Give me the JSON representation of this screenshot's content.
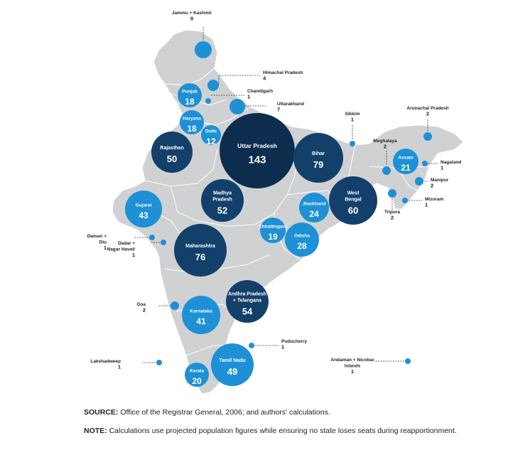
{
  "map": {
    "colors": {
      "land": "#cfd1d3",
      "border": "#ffffff",
      "large": "#0c2d4d",
      "dark": "#13406a",
      "mid": "#1f78bf",
      "light": "#1e90d6",
      "leader": "#333333"
    },
    "states": [
      {
        "id": "uttar-pradesh",
        "name": "Uttar Pradesh",
        "value": "143",
        "seats": 143,
        "tier": "large",
        "labelInside": true
      },
      {
        "id": "bihar",
        "name": "Bihar",
        "value": "79",
        "seats": 79,
        "tier": "dark",
        "labelInside": true
      },
      {
        "id": "maharashtra",
        "name": "Maharashtra",
        "value": "76",
        "seats": 76,
        "tier": "dark",
        "labelInside": true
      },
      {
        "id": "west-bengal",
        "name": "West Bengal",
        "value": "60",
        "seats": 60,
        "tier": "dark",
        "labelInside": true
      },
      {
        "id": "andhra-pradesh-telangana",
        "name": "Andhra Pradesh + Telangana",
        "value": "54",
        "seats": 54,
        "tier": "dark",
        "labelInside": true
      },
      {
        "id": "madhya-pradesh",
        "name": "Madhya Pradesh",
        "value": "52",
        "seats": 52,
        "tier": "dark",
        "labelInside": true
      },
      {
        "id": "rajasthan",
        "name": "Rajasthan",
        "value": "50",
        "seats": 50,
        "tier": "dark",
        "labelInside": true
      },
      {
        "id": "tamil-nadu",
        "name": "Tamil Nadu",
        "value": "49",
        "seats": 49,
        "tier": "light",
        "labelInside": true
      },
      {
        "id": "gujarat",
        "name": "Gujarat",
        "value": "43",
        "seats": 43,
        "tier": "light",
        "labelInside": true
      },
      {
        "id": "karnataka",
        "name": "Karnataka",
        "value": "41",
        "seats": 41,
        "tier": "light",
        "labelInside": true
      },
      {
        "id": "odisha",
        "name": "Odisha",
        "value": "28",
        "seats": 28,
        "tier": "light",
        "labelInside": true
      },
      {
        "id": "jharkhand",
        "name": "Jharkhand",
        "value": "24",
        "seats": 24,
        "tier": "light",
        "labelInside": true
      },
      {
        "id": "assam",
        "name": "Assam",
        "value": "21",
        "seats": 21,
        "tier": "light",
        "labelInside": true
      },
      {
        "id": "kerala",
        "name": "Kerala",
        "value": "20",
        "seats": 20,
        "tier": "light",
        "labelInside": true
      },
      {
        "id": "chhattisgarh",
        "name": "Chhattisgarh",
        "value": "19",
        "seats": 19,
        "tier": "light",
        "labelInside": true
      },
      {
        "id": "punjab",
        "name": "Punjab",
        "value": "18",
        "seats": 18,
        "tier": "light",
        "labelInside": true
      },
      {
        "id": "haryana",
        "name": "Haryana",
        "value": "18",
        "seats": 18,
        "tier": "light",
        "labelInside": true
      },
      {
        "id": "delhi",
        "name": "Delhi",
        "value": "12",
        "seats": 12,
        "tier": "light",
        "labelInside": true
      },
      {
        "id": "jammu-kashmir",
        "name": "Jammu + Kashmir",
        "value": "9",
        "seats": 9,
        "tier": "light",
        "labelInside": false
      },
      {
        "id": "uttarakhand",
        "name": "Uttarakhand",
        "value": "7",
        "seats": 7,
        "tier": "light",
        "labelInside": false
      },
      {
        "id": "himachal-pradesh",
        "name": "Himachal Pradesh",
        "value": "4",
        "seats": 4,
        "tier": "light",
        "labelInside": false
      },
      {
        "id": "arunachal-pradesh",
        "name": "Arunachal Pradesh",
        "value": "2",
        "seats": 2,
        "tier": "light",
        "labelInside": false
      },
      {
        "id": "meghalaya",
        "name": "Meghalaya",
        "value": "2",
        "seats": 2,
        "tier": "light",
        "labelInside": false
      },
      {
        "id": "manipur",
        "name": "Manipur",
        "value": "2",
        "seats": 2,
        "tier": "light",
        "labelInside": false
      },
      {
        "id": "tripura",
        "name": "Tripura",
        "value": "2",
        "seats": 2,
        "tier": "light",
        "labelInside": false
      },
      {
        "id": "goa",
        "name": "Goa",
        "value": "2",
        "seats": 2,
        "tier": "light",
        "labelInside": false
      },
      {
        "id": "chandigarh",
        "name": "Chandigarh",
        "value": "1",
        "seats": 1,
        "tier": "light",
        "labelInside": false
      },
      {
        "id": "sikkim",
        "name": "Sikkim",
        "value": "1",
        "seats": 1,
        "tier": "light",
        "labelInside": false
      },
      {
        "id": "nagaland",
        "name": "Nagaland",
        "value": "1",
        "seats": 1,
        "tier": "light",
        "labelInside": false
      },
      {
        "id": "mizoram",
        "name": "Mizoram",
        "value": "1",
        "seats": 1,
        "tier": "light",
        "labelInside": false
      },
      {
        "id": "daman-diu",
        "name": "Daman + Diu",
        "value": "1",
        "seats": 1,
        "tier": "light",
        "labelInside": false
      },
      {
        "id": "dadar-nagar-haveli",
        "name": "Dadar + Nagar Haveli",
        "value": "1",
        "seats": 1,
        "tier": "light",
        "labelInside": false
      },
      {
        "id": "puducherry",
        "name": "Puducherry",
        "value": "1",
        "seats": 1,
        "tier": "light",
        "labelInside": false
      },
      {
        "id": "lakshadweep",
        "name": "Lakshadweep",
        "value": "1",
        "seats": 1,
        "tier": "light",
        "labelInside": false
      },
      {
        "id": "andaman-nicobar",
        "name": "Andaman + Nicobar Islands",
        "value": "1",
        "seats": 1,
        "tier": "light",
        "labelInside": false
      }
    ]
  },
  "footer": {
    "source_label": "SOURCE:",
    "source_text": " Office of the Registrar General, 2006; and authors' calculations.",
    "note_label": "NOTE:",
    "note_text": " Calculations use projected population figures while ensuring no state loses seats during reapportionment."
  }
}
